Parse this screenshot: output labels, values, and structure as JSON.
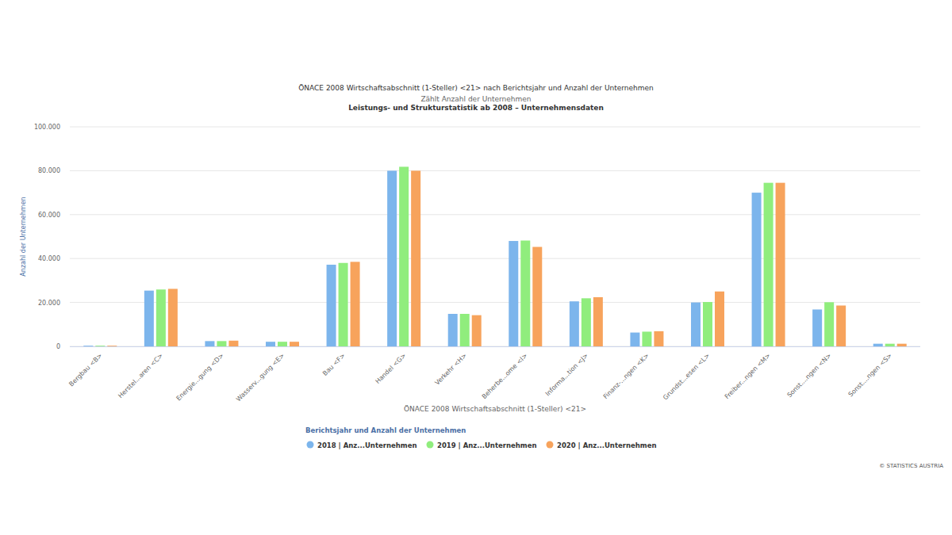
{
  "chart_data": {
    "type": "bar",
    "title": "ÖNACE 2008 Wirtschaftsabschnitt (1-Steller) <21> nach Berichtsjahr und Anzahl der Unternehmen",
    "subtitle": [
      "Zählt Anzahl der Unternehmen",
      "Leistungs- und Strukturstatistik ab 2008 – Unternehmensdaten"
    ],
    "x_label": "ÖNACE 2008 Wirtschaftsabschnitt (1-Steller) <21>",
    "y_label": "Anzahl der Unternehmen",
    "legend_title": "Berichtsjahr und Anzahl der Unternehmen",
    "credits": "© STATISTICS AUSTRIA",
    "categories": [
      "Bergbau <B>",
      "Herstel...aren <C>",
      "Energie...gung <D>",
      "Wasserv...gung <E>",
      "Bau <F>",
      "Handel <G>",
      "Verkehr <H>",
      "Beherbe...ome <I>",
      "Informa...tion <J>",
      "Finanz-...ngen <K>",
      "Grundst...esen <L>",
      "Freiber...ngen <M>",
      "Sonst....ngen <N>",
      "Sonst....ngen <S>"
    ],
    "series": [
      {
        "name": "2018 | Anz...Unternehmen",
        "color": "#7cb5ec",
        "values": [
          300,
          25400,
          2400,
          2100,
          37200,
          80000,
          14800,
          48000,
          20500,
          6300,
          20000,
          70000,
          16800,
          1200
        ]
      },
      {
        "name": "2019 | Anz...Unternehmen",
        "color": "#90ed7d",
        "values": [
          300,
          25900,
          2400,
          2100,
          38000,
          81800,
          14800,
          48200,
          21900,
          6700,
          20200,
          74500,
          20100,
          1200
        ]
      },
      {
        "name": "2020 | Anz...Unternehmen",
        "color": "#f7a35c",
        "values": [
          300,
          26200,
          2600,
          2100,
          38500,
          80000,
          14200,
          45300,
          22400,
          6900,
          25000,
          74500,
          18600,
          1200
        ]
      }
    ],
    "ylim": [
      0,
      100000
    ],
    "yticks": [
      0,
      {
        "value": 20000,
        "label": "20.000"
      },
      {
        "value": 40000,
        "label": "40.000"
      },
      {
        "value": 60000,
        "label": "60.000"
      },
      {
        "value": 80000,
        "label": "80.000"
      },
      {
        "value": 100000,
        "label": "100.000"
      }
    ],
    "grid": true,
    "legend": "bottom"
  }
}
